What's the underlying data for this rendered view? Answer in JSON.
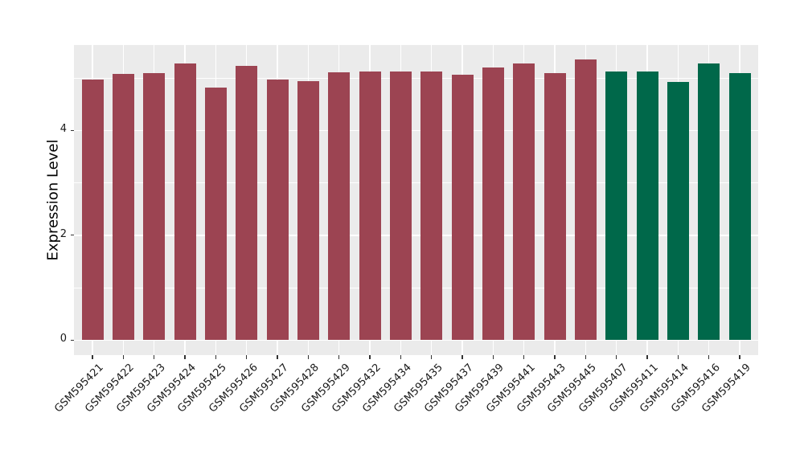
{
  "chart_data": {
    "type": "bar",
    "title": "",
    "xlabel": "",
    "ylabel": "Expression Level",
    "yticks": [
      0,
      2,
      4
    ],
    "yticks_minor": [
      1,
      3,
      5
    ],
    "ylim": [
      -0.28,
      5.63
    ],
    "legend": "none",
    "grid": "on",
    "panel_bg": "#EBEBEB",
    "grid_color": "#FFFFFF",
    "tick_color": "#333333",
    "tick_label_color": "#1a1a1a",
    "groups": [
      {
        "name": "group-red",
        "color": "#9C4452"
      },
      {
        "name": "group-green",
        "color": "#00684A"
      }
    ],
    "bars": [
      {
        "label": "GSM595421",
        "value": 4.97,
        "group": 0
      },
      {
        "label": "GSM595422",
        "value": 5.07,
        "group": 0
      },
      {
        "label": "GSM595423",
        "value": 5.1,
        "group": 0
      },
      {
        "label": "GSM595424",
        "value": 5.27,
        "group": 0
      },
      {
        "label": "GSM595425",
        "value": 4.81,
        "group": 0
      },
      {
        "label": "GSM595426",
        "value": 5.23,
        "group": 0
      },
      {
        "label": "GSM595427",
        "value": 4.97,
        "group": 0
      },
      {
        "label": "GSM595428",
        "value": 4.94,
        "group": 0
      },
      {
        "label": "GSM595429",
        "value": 5.11,
        "group": 0
      },
      {
        "label": "GSM595432",
        "value": 5.12,
        "group": 0
      },
      {
        "label": "GSM595434",
        "value": 5.13,
        "group": 0
      },
      {
        "label": "GSM595435",
        "value": 5.13,
        "group": 0
      },
      {
        "label": "GSM595437",
        "value": 5.06,
        "group": 0
      },
      {
        "label": "GSM595439",
        "value": 5.2,
        "group": 0
      },
      {
        "label": "GSM595441",
        "value": 5.27,
        "group": 0
      },
      {
        "label": "GSM595443",
        "value": 5.09,
        "group": 0
      },
      {
        "label": "GSM595445",
        "value": 5.35,
        "group": 0
      },
      {
        "label": "GSM595407",
        "value": 5.12,
        "group": 1
      },
      {
        "label": "GSM595411",
        "value": 5.13,
        "group": 1
      },
      {
        "label": "GSM595414",
        "value": 4.93,
        "group": 1
      },
      {
        "label": "GSM595416",
        "value": 5.27,
        "group": 1
      },
      {
        "label": "GSM595419",
        "value": 5.09,
        "group": 1
      }
    ]
  }
}
